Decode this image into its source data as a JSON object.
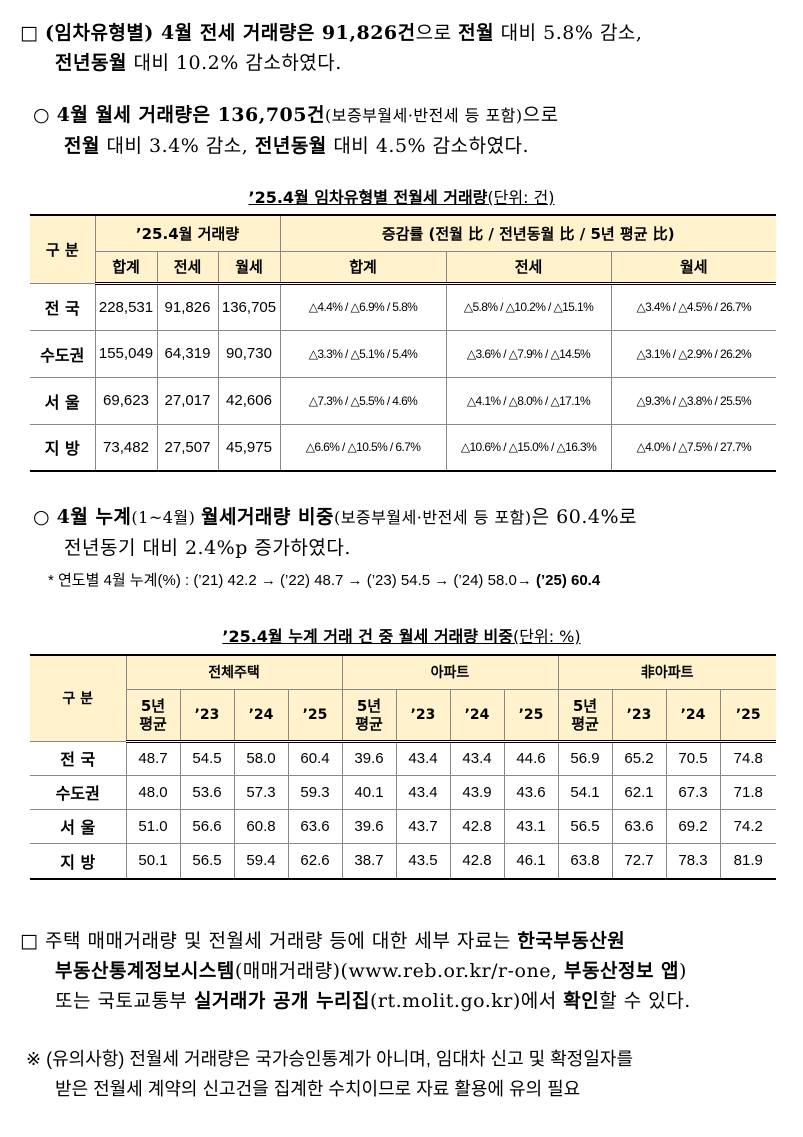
{
  "p1": {
    "bullet": "□",
    "l1_a": "(임차유형별) 4월 ",
    "l1_b": "전세 거래량은 91,826건",
    "l1_c": "으로 ",
    "l1_d": "전월",
    "l1_e": " 대비 5.8% 감소,",
    "l2_a": "전년동월",
    "l2_b": " 대비 10.2% 감소하였다."
  },
  "p2": {
    "bullet": "○",
    "l1_a": "4월 월세 거래량은 136,705건",
    "l1_b": "(보증부월세·반전세 등 포함)",
    "l1_c": "으로",
    "l2_a": "전월",
    "l2_b": " 대비 3.4% 감소, ",
    "l2_c": "전년동월",
    "l2_d": " 대비 4.5% 감소하였다."
  },
  "table1": {
    "caption": "’25.4월 임차유형별 전월세 거래량",
    "unit": "(단위: 건)",
    "h_division": "구 분",
    "h_volume": "’25.4월 거래량",
    "h_rate": "증감률 (전월 比 / 전년동월 比 / 5년 평균 比)",
    "sub_vol": [
      "합계",
      "전세",
      "월세"
    ],
    "sub_rate": [
      "합계",
      "전세",
      "월세"
    ],
    "rows": [
      {
        "region": "전 국",
        "total": "228,531",
        "jeonse": "91,826",
        "wolse": "136,705",
        "r_total": "△4.4% / △6.9% / 5.8%",
        "r_jeonse": "△5.8% / △10.2% / △15.1%",
        "r_wolse": "△3.4% / △4.5% / 26.7%"
      },
      {
        "region": "수도권",
        "total": "155,049",
        "jeonse": "64,319",
        "wolse": "90,730",
        "r_total": "△3.3% / △5.1% / 5.4%",
        "r_jeonse": "△3.6% / △7.9% / △14.5%",
        "r_wolse": "△3.1% / △2.9% / 26.2%"
      },
      {
        "region": "서 울",
        "total": "69,623",
        "jeonse": "27,017",
        "wolse": "42,606",
        "r_total": "△7.3% / △5.5% / 4.6%",
        "r_jeonse": "△4.1% / △8.0% / △17.1%",
        "r_wolse": "△9.3% / △3.8% / 25.5%"
      },
      {
        "region": "지 방",
        "total": "73,482",
        "jeonse": "27,507",
        "wolse": "45,975",
        "r_total": "△6.6% / △10.5% / 6.7%",
        "r_jeonse": "△10.6% / △15.0% / △16.3%",
        "r_wolse": "△4.0% / △7.5% / 27.7%"
      }
    ]
  },
  "p3": {
    "bullet": "○",
    "l1_a": "4월 누계",
    "l1_b": "(1~4월) ",
    "l1_c": "월세거래량 비중",
    "l1_d": "(보증부월세·반전세 등 포함)",
    "l1_e": "은 60.4%로",
    "l2": "전년동기 대비 2.4%p 증가하였다.",
    "note_a": "* 연도별 4월 누계(%) : (’21) 42.2 → (’22) 48.7 → (’23) 54.5 → (’24) 58.0→ ",
    "note_b": "(’25) 60.4"
  },
  "table2": {
    "caption": "’25.4월 누계 거래 건 중 월세 거래량 비중",
    "unit": "(단위: %)",
    "h_division": "구 분",
    "groups": [
      "전체주택",
      "아파트",
      "非아파트"
    ],
    "sub_avg_1": "5년",
    "sub_avg_2": "평균",
    "sub_years": [
      "’23",
      "’24",
      "’25"
    ],
    "rows": [
      {
        "region": "전 국",
        "vals": [
          "48.7",
          "54.5",
          "58.0",
          "60.4",
          "39.6",
          "43.4",
          "43.4",
          "44.6",
          "56.9",
          "65.2",
          "70.5",
          "74.8"
        ]
      },
      {
        "region": "수도권",
        "vals": [
          "48.0",
          "53.6",
          "57.3",
          "59.3",
          "40.1",
          "43.4",
          "43.9",
          "43.6",
          "54.1",
          "62.1",
          "67.3",
          "71.8"
        ]
      },
      {
        "region": "서 울",
        "vals": [
          "51.0",
          "56.6",
          "60.8",
          "63.6",
          "39.6",
          "43.7",
          "42.8",
          "43.1",
          "56.5",
          "63.6",
          "69.2",
          "74.2"
        ]
      },
      {
        "region": "지 방",
        "vals": [
          "50.1",
          "56.5",
          "59.4",
          "62.6",
          "38.7",
          "43.5",
          "42.8",
          "46.1",
          "63.8",
          "72.7",
          "78.3",
          "81.9"
        ]
      }
    ]
  },
  "p4": {
    "bullet": "□",
    "l1_a": "주택 매매거래량 및 전월세 거래량 등에 대한 세부 자료는 ",
    "l1_b": "한국부동산원",
    "l2_a": "부동산통계정보시스템",
    "l2_b": "(매매거래량)(",
    "l2_c": "www.reb.or.kr/r-one",
    "l2_d": ", ",
    "l2_e": "부동산정보 앱",
    "l2_f": ")",
    "l3_a": "또는 국토교통부 ",
    "l3_b": "실거래가 공개 누리집",
    "l3_c": "(rt.molit.go.kr)",
    "l3_d": "에서 ",
    "l3_e": "확인",
    "l3_f": "할 수 있다."
  },
  "p5": {
    "bullet": "※",
    "l1": "(유의사항) 전월세 거래량은 국가승인통계가 아니며, 임대차 신고 및 확정일자를",
    "l2": "받은 전월세 계약의 신고건을 집계한 수치이므로 자료 활용에 유의 필요"
  }
}
